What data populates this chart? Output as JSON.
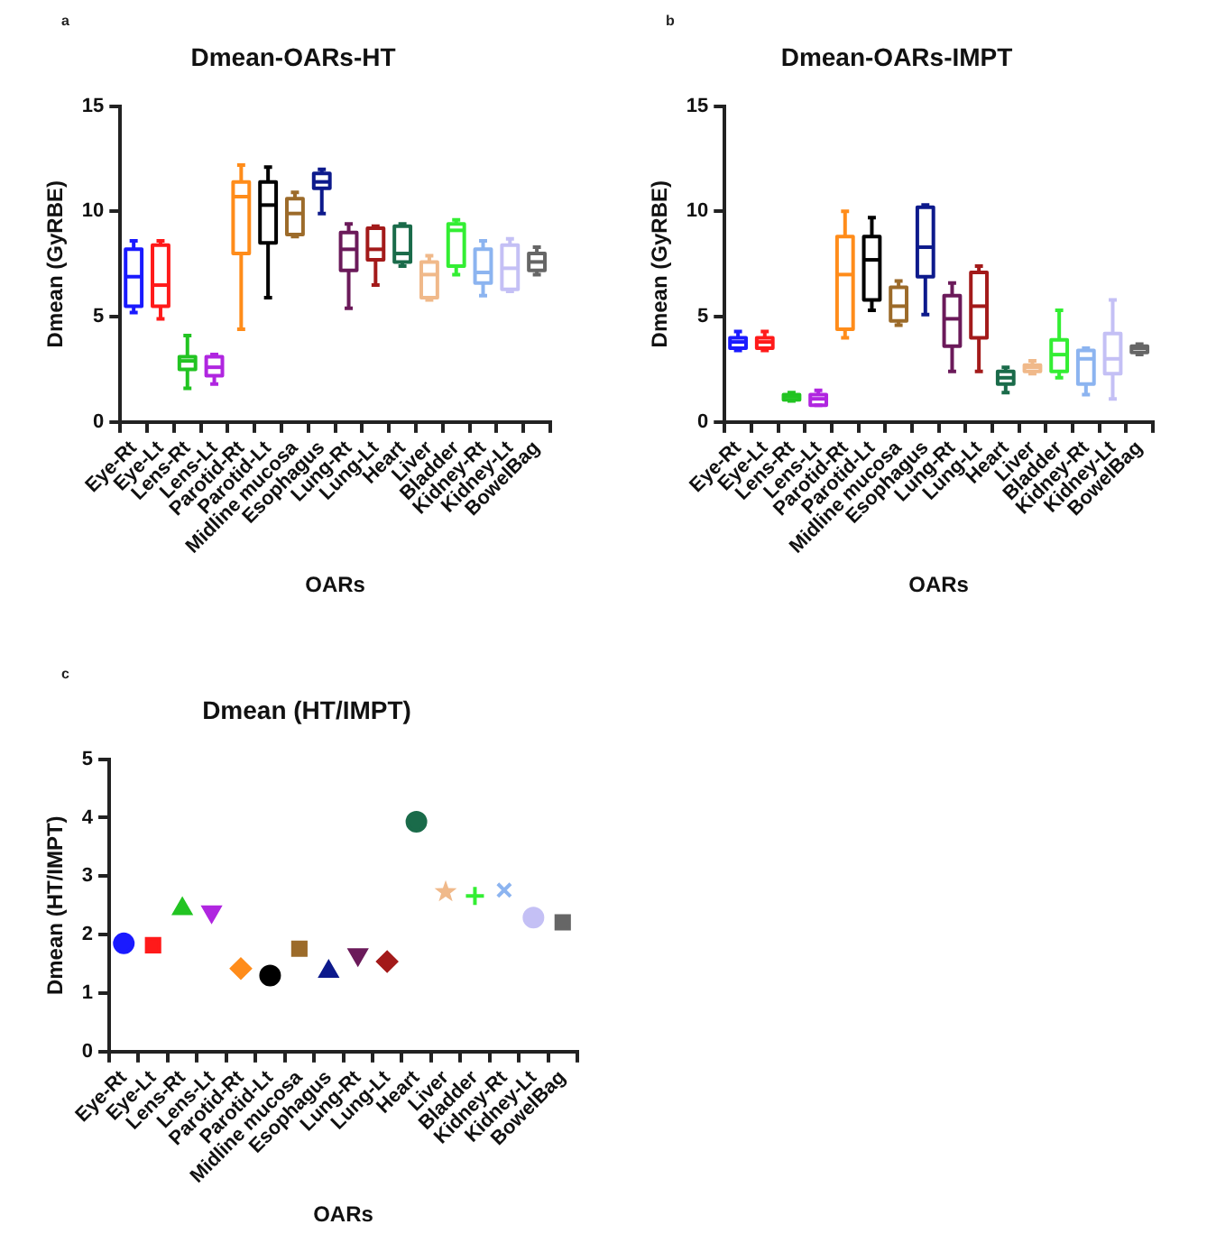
{
  "chart_data": [
    {
      "type": "box",
      "title": "Dmean-OARs-HT",
      "xlabel": "OARs",
      "ylabel": "Dmean (GyRBE)",
      "annotations": [
        "a"
      ],
      "categories": [
        "Eye-Rt",
        "Eye-Lt",
        "Lens-Rt",
        "Lens-Lt",
        "Parotid-Rt",
        "Parotid-Lt",
        "Midline mucosa",
        "Esophagus",
        "Lung-Rt",
        "Lung-Lt",
        "Heart",
        "Liver",
        "Bladder",
        "Kidney-Rt",
        "Kidney-Lt",
        "BowelBag"
      ],
      "colors": [
        "#1a1aff",
        "#ff1a1a",
        "#22c422",
        "#b026e0",
        "#ff8c1a",
        "#000000",
        "#9c6b2a",
        "#0d1a8c",
        "#6b1a5a",
        "#a31a1a",
        "#1a6b4a",
        "#f0b98a",
        "#33ee33",
        "#8cb4f0",
        "#c4c0f5",
        "#666666"
      ],
      "boxes": [
        {
          "low": 5.2,
          "q1": 5.5,
          "median": 6.9,
          "q3": 8.2,
          "high": 8.6
        },
        {
          "low": 4.9,
          "q1": 5.5,
          "median": 6.5,
          "q3": 8.4,
          "high": 8.6
        },
        {
          "low": 1.6,
          "q1": 2.5,
          "median": 2.9,
          "q3": 3.1,
          "high": 4.1
        },
        {
          "low": 1.8,
          "q1": 2.2,
          "median": 2.6,
          "q3": 3.1,
          "high": 3.2
        },
        {
          "low": 4.4,
          "q1": 8.0,
          "median": 10.7,
          "q3": 11.4,
          "high": 12.2
        },
        {
          "low": 5.9,
          "q1": 8.5,
          "median": 10.3,
          "q3": 11.4,
          "high": 12.1
        },
        {
          "low": 8.8,
          "q1": 8.9,
          "median": 9.9,
          "q3": 10.6,
          "high": 10.9
        },
        {
          "low": 9.9,
          "q1": 11.1,
          "median": 11.4,
          "q3": 11.8,
          "high": 12.0
        },
        {
          "low": 5.4,
          "q1": 7.2,
          "median": 8.2,
          "q3": 9.0,
          "high": 9.4
        },
        {
          "low": 6.5,
          "q1": 7.7,
          "median": 8.2,
          "q3": 9.2,
          "high": 9.3
        },
        {
          "low": 7.4,
          "q1": 7.6,
          "median": 8.0,
          "q3": 9.3,
          "high": 9.4
        },
        {
          "low": 5.8,
          "q1": 5.9,
          "median": 7.0,
          "q3": 7.6,
          "high": 7.9
        },
        {
          "low": 7.0,
          "q1": 7.4,
          "median": 9.1,
          "q3": 9.4,
          "high": 9.6
        },
        {
          "low": 6.0,
          "q1": 6.6,
          "median": 7.1,
          "q3": 8.2,
          "high": 8.6
        },
        {
          "low": 6.2,
          "q1": 6.3,
          "median": 7.3,
          "q3": 8.4,
          "high": 8.7
        },
        {
          "low": 7.0,
          "q1": 7.2,
          "median": 7.6,
          "q3": 8.0,
          "high": 8.3
        }
      ],
      "ylim": [
        0,
        15
      ],
      "yticks": [
        0,
        5,
        10,
        15
      ],
      "legend": false
    },
    {
      "type": "box",
      "title": "Dmean-OARs-IMPT",
      "xlabel": "OARs",
      "ylabel": "Dmean (GyRBE)",
      "annotations": [
        "b"
      ],
      "categories": [
        "Eye-Rt",
        "Eye-Lt",
        "Lens-Rt",
        "Lens-Lt",
        "Parotid-Rt",
        "Parotid-Lt",
        "Midline mucosa",
        "Esophagus",
        "Lung-Rt",
        "Lung-Lt",
        "Heart",
        "Liver",
        "Bladder",
        "Kidney-Rt",
        "Kidney-Lt",
        "BowelBag"
      ],
      "colors": [
        "#1a1aff",
        "#ff1a1a",
        "#22c422",
        "#b026e0",
        "#ff8c1a",
        "#000000",
        "#9c6b2a",
        "#0d1a8c",
        "#6b1a5a",
        "#a31a1a",
        "#1a6b4a",
        "#f0b98a",
        "#33ee33",
        "#8cb4f0",
        "#c4c0f5",
        "#666666"
      ],
      "boxes": [
        {
          "low": 3.4,
          "q1": 3.5,
          "median": 3.8,
          "q3": 4.0,
          "high": 4.3
        },
        {
          "low": 3.4,
          "q1": 3.5,
          "median": 3.8,
          "q3": 4.0,
          "high": 4.3
        },
        {
          "low": 1.0,
          "q1": 1.05,
          "median": 1.2,
          "q3": 1.3,
          "high": 1.4
        },
        {
          "low": 0.8,
          "q1": 0.8,
          "median": 1.1,
          "q3": 1.3,
          "high": 1.5
        },
        {
          "low": 4.0,
          "q1": 4.4,
          "median": 7.0,
          "q3": 8.8,
          "high": 10.0
        },
        {
          "low": 5.3,
          "q1": 5.8,
          "median": 7.7,
          "q3": 8.8,
          "high": 9.7
        },
        {
          "low": 4.6,
          "q1": 4.8,
          "median": 5.5,
          "q3": 6.4,
          "high": 6.7
        },
        {
          "low": 5.1,
          "q1": 6.9,
          "median": 8.3,
          "q3": 10.2,
          "high": 10.3
        },
        {
          "low": 2.4,
          "q1": 3.6,
          "median": 4.9,
          "q3": 6.0,
          "high": 6.6
        },
        {
          "low": 2.4,
          "q1": 4.0,
          "median": 5.5,
          "q3": 7.1,
          "high": 7.4
        },
        {
          "low": 1.4,
          "q1": 1.8,
          "median": 2.1,
          "q3": 2.4,
          "high": 2.6
        },
        {
          "low": 2.3,
          "q1": 2.4,
          "median": 2.6,
          "q3": 2.7,
          "high": 2.9
        },
        {
          "low": 2.1,
          "q1": 2.4,
          "median": 3.2,
          "q3": 3.9,
          "high": 5.3
        },
        {
          "low": 1.3,
          "q1": 1.8,
          "median": 3.0,
          "q3": 3.4,
          "high": 3.5
        },
        {
          "low": 1.1,
          "q1": 2.3,
          "median": 3.0,
          "q3": 4.2,
          "high": 5.8
        },
        {
          "low": 3.2,
          "q1": 3.3,
          "median": 3.5,
          "q3": 3.6,
          "high": 3.7
        }
      ],
      "ylim": [
        0,
        15
      ],
      "yticks": [
        0,
        5,
        10,
        15
      ],
      "legend": false
    },
    {
      "type": "scatter",
      "title": "Dmean (HT/IMPT)",
      "xlabel": "OARs",
      "ylabel": "Dmean (HT/IMPT)",
      "annotations": [
        "c"
      ],
      "categories": [
        "Eye-Rt",
        "Eye-Lt",
        "Lens-Rt",
        "Lens-Lt",
        "Parotid-Rt",
        "Parotid-Lt",
        "Midline mucosa",
        "Esophagus",
        "Lung-Rt",
        "Lung-Lt",
        "Heart",
        "Liver",
        "Bladder",
        "Kidney-Rt",
        "Kidney-Lt",
        "BowelBag"
      ],
      "series": [
        {
          "color": "#1a1aff",
          "marker": "circle",
          "x": [
            "Eye-Rt"
          ],
          "values": [
            1.85
          ]
        },
        {
          "color": "#ff1a1a",
          "marker": "square",
          "x": [
            "Eye-Lt"
          ],
          "values": [
            1.82
          ]
        },
        {
          "color": "#22c422",
          "marker": "triangle",
          "x": [
            "Lens-Rt"
          ],
          "values": [
            2.44
          ]
        },
        {
          "color": "#b026e0",
          "marker": "triangle-down",
          "x": [
            "Lens-Lt"
          ],
          "values": [
            2.39
          ]
        },
        {
          "color": "#ff8c1a",
          "marker": "diamond",
          "x": [
            "Parotid-Rt"
          ],
          "values": [
            1.42
          ]
        },
        {
          "color": "#000000",
          "marker": "circle",
          "x": [
            "Parotid-Lt"
          ],
          "values": [
            1.3
          ]
        },
        {
          "color": "#9c6b2a",
          "marker": "square",
          "x": [
            "Midline mucosa"
          ],
          "values": [
            1.76
          ]
        },
        {
          "color": "#0d1a8c",
          "marker": "triangle",
          "x": [
            "Esophagus"
          ],
          "values": [
            1.37
          ]
        },
        {
          "color": "#6b1a5a",
          "marker": "triangle-down",
          "x": [
            "Lung-Rt"
          ],
          "values": [
            1.66
          ]
        },
        {
          "color": "#a31a1a",
          "marker": "diamond",
          "x": [
            "Lung-Lt"
          ],
          "values": [
            1.54
          ]
        },
        {
          "color": "#1a6b4a",
          "marker": "circle",
          "x": [
            "Heart"
          ],
          "values": [
            3.93
          ]
        },
        {
          "color": "#f0b98a",
          "marker": "star",
          "x": [
            "Liver"
          ],
          "values": [
            2.73
          ]
        },
        {
          "color": "#33ee33",
          "marker": "cross",
          "x": [
            "Bladder"
          ],
          "values": [
            2.66
          ]
        },
        {
          "color": "#8cb4f0",
          "marker": "x",
          "x": [
            "Kidney-Rt"
          ],
          "values": [
            2.76
          ]
        },
        {
          "color": "#c4c0f5",
          "marker": "circle",
          "x": [
            "Kidney-Lt"
          ],
          "values": [
            2.29
          ]
        },
        {
          "color": "#666666",
          "marker": "square",
          "x": [
            "BowelBag"
          ],
          "values": [
            2.21
          ]
        }
      ],
      "ylim": [
        0,
        5
      ],
      "yticks": [
        0,
        1,
        2,
        3,
        4,
        5
      ],
      "legend": false
    }
  ]
}
